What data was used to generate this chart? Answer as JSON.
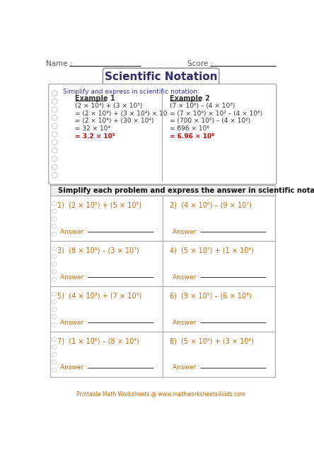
{
  "title": "Scientific Notation",
  "name_label": "Name :",
  "score_label": "Score :",
  "example_header": "Simplify and express in scientific notation:",
  "example1_title": "Example 1",
  "example1_lines": [
    "(2 × 10⁴) + (3 × 10⁵)",
    "= (2 × 10⁴) + (3 × 10⁴) × 10",
    "= (2 × 10⁴) + (30 × 10⁴)",
    "= 32 × 10⁴",
    "= 3.2 × 10⁵"
  ],
  "example2_title": "Example 2",
  "example2_lines": [
    "(7 × 10⁶) – (4 × 10⁸)",
    "= (7 × 10⁶) × 10² – (4 × 10⁸)",
    "= (700 × 10⁶) – (4 × 10⁸)",
    "= 696 × 10⁶",
    "= 6.96 × 10⁸"
  ],
  "instruction": "Simplify each problem and express the answer in scientific notation.",
  "problems": [
    [
      "1)  (2 × 10⁵) + (5 × 10⁵)",
      "2)  (4 × 10⁶) – (9 × 10⁷)"
    ],
    [
      "3)  (8 × 10⁹) – (3 × 10⁷)",
      "4)  (5 × 10⁷) + (1 × 10⁶)"
    ],
    [
      "5)  (4 × 10³) + (7 × 10³)",
      "6)  (9 × 10⁵) – (6 × 10⁴)"
    ],
    [
      "7)  (1 × 10⁶) – (8 × 10⁴)",
      "8)  (5 × 10⁹) + (3 × 10⁶)"
    ]
  ],
  "answer_label": "Answer :",
  "footer": "Printable Math Worksheets @ www.mathworksheets4kids.com",
  "bg_color": "#ffffff",
  "title_text_color": "#2d2d6b",
  "example_answer_color": "#cc0000",
  "problem_text_color": "#cc6600",
  "answer_label_color": "#cc6600",
  "footer_color": "#cc6600",
  "example_header_color": "#3333aa",
  "border_color": "#aaaaaa",
  "spiral_color": "#cccccc",
  "text_dark": "#333333",
  "text_mid": "#555555",
  "line_color": "#333333"
}
